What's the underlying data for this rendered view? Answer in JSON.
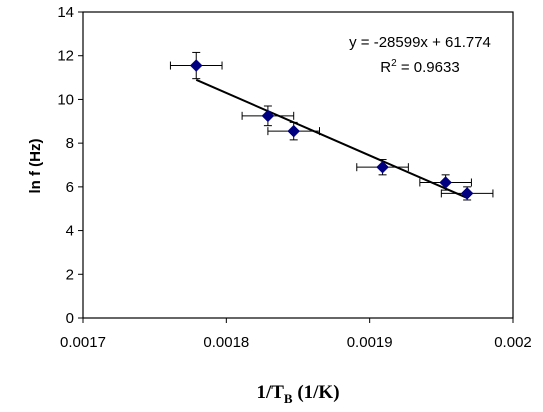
{
  "chart_data": {
    "type": "scatter",
    "title": "",
    "xlabel": {
      "base": "1/T",
      "sub": "B",
      "suffix": " (1/K)"
    },
    "ylabel": "ln f (Hz)",
    "xlim": [
      0.0017,
      0.002
    ],
    "ylim": [
      0,
      14
    ],
    "x_ticks": [
      "0.0017",
      "0.0018",
      "0.0019",
      "0.002"
    ],
    "y_ticks": [
      "0",
      "2",
      "4",
      "6",
      "8",
      "10",
      "12",
      "14"
    ],
    "grid": false,
    "marker_color": "#000080",
    "points": [
      {
        "x": 0.001779,
        "y": 11.55,
        "xerr": 1.8e-05,
        "yerr": 0.6
      },
      {
        "x": 0.001829,
        "y": 9.25,
        "xerr": 1.8e-05,
        "yerr": 0.45
      },
      {
        "x": 0.001847,
        "y": 8.55,
        "xerr": 1.8e-05,
        "yerr": 0.4
      },
      {
        "x": 0.001909,
        "y": 6.9,
        "xerr": 1.8e-05,
        "yerr": 0.35
      },
      {
        "x": 0.001953,
        "y": 6.2,
        "xerr": 1.8e-05,
        "yerr": 0.35
      },
      {
        "x": 0.001968,
        "y": 5.7,
        "xerr": 1.8e-05,
        "yerr": 0.3
      }
    ],
    "fit": {
      "slope": -28599,
      "intercept": 61.774,
      "x_range": [
        0.001779,
        0.001968
      ]
    },
    "annotations": {
      "equation": "y = -28599x + 61.774",
      "r2_label": "R",
      "r2_sup": "2",
      "r2_value": " = 0.9633"
    }
  }
}
